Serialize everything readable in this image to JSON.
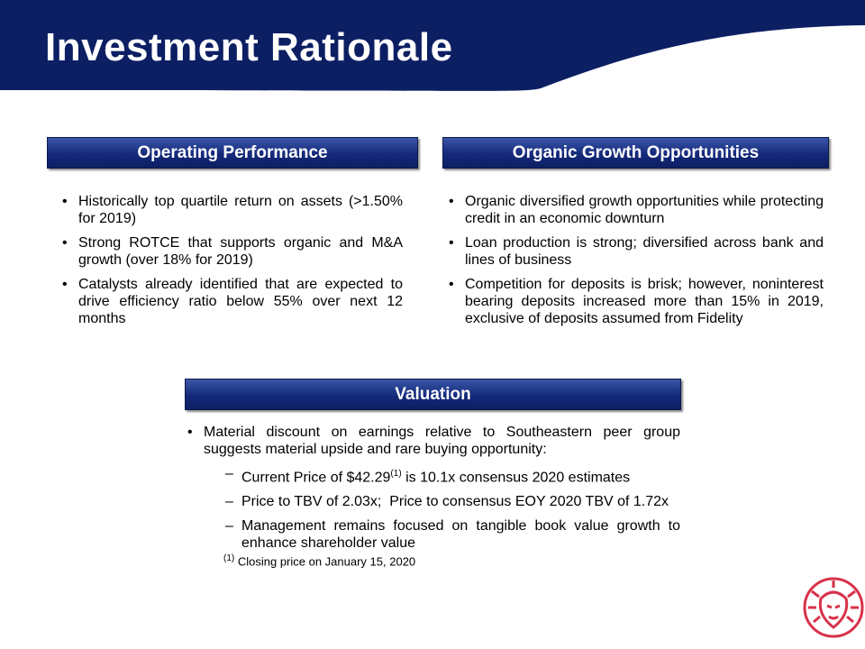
{
  "header": {
    "title": "Investment Rationale"
  },
  "sections": [
    {
      "heading": "Operating Performance",
      "bullets": [
        "Historically top quartile return on assets (>1.50% for 2019)",
        "Strong ROTCE that supports organic and M&A growth (over 18% for 2019)",
        "Catalysts already identified that are expected to drive efficiency ratio below 55% over next 12 months"
      ]
    },
    {
      "heading": "Organic Growth Opportunities",
      "bullets": [
        "Organic diversified growth opportunities while protecting credit in an economic downturn",
        "Loan production is strong; diversified across bank and lines of business",
        "Competition for deposits is brisk; however, noninterest bearing deposits increased more than 15% in 2019, exclusive of deposits assumed from Fidelity"
      ]
    }
  ],
  "valuation": {
    "heading": "Valuation",
    "bullet": "Material discount on earnings relative to Southeastern peer group suggests material upside and rare buying opportunity:",
    "sub_bullets": [
      {
        "text": "Current Price of $42.29",
        "note": "(1)",
        "rest": " is 10.1x consensus 2020 estimates"
      },
      {
        "text": "Price to TBV of 2.03x;  Price to consensus EOY 2020 TBV of 1.72x"
      },
      {
        "text": "Management remains focused on tangible book value growth to enhance shareholder value"
      }
    ],
    "footnote": {
      "marker": "(1)",
      "text": "Closing price on January 15, 2020"
    }
  }
}
